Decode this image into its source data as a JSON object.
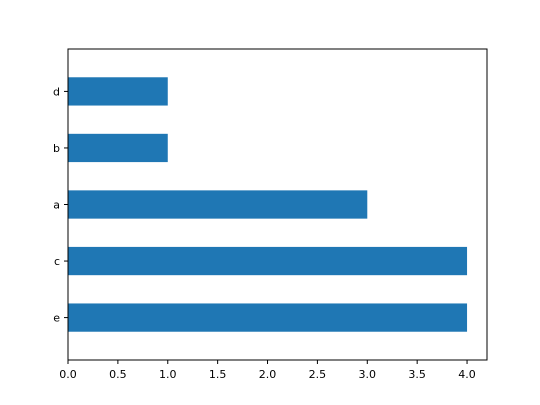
{
  "chart_data": {
    "type": "bar",
    "orientation": "horizontal",
    "categories": [
      "e",
      "c",
      "a",
      "b",
      "d"
    ],
    "values": [
      4,
      4,
      3,
      1,
      1
    ],
    "bar_color": "#1f77b4",
    "xlim": [
      0.0,
      4.2
    ],
    "xticks": [
      "0.0",
      "0.5",
      "1.0",
      "1.5",
      "2.0",
      "2.5",
      "3.0",
      "3.5",
      "4.0"
    ],
    "title": "",
    "xlabel": "",
    "ylabel": "",
    "grid": false,
    "legend": "none"
  }
}
